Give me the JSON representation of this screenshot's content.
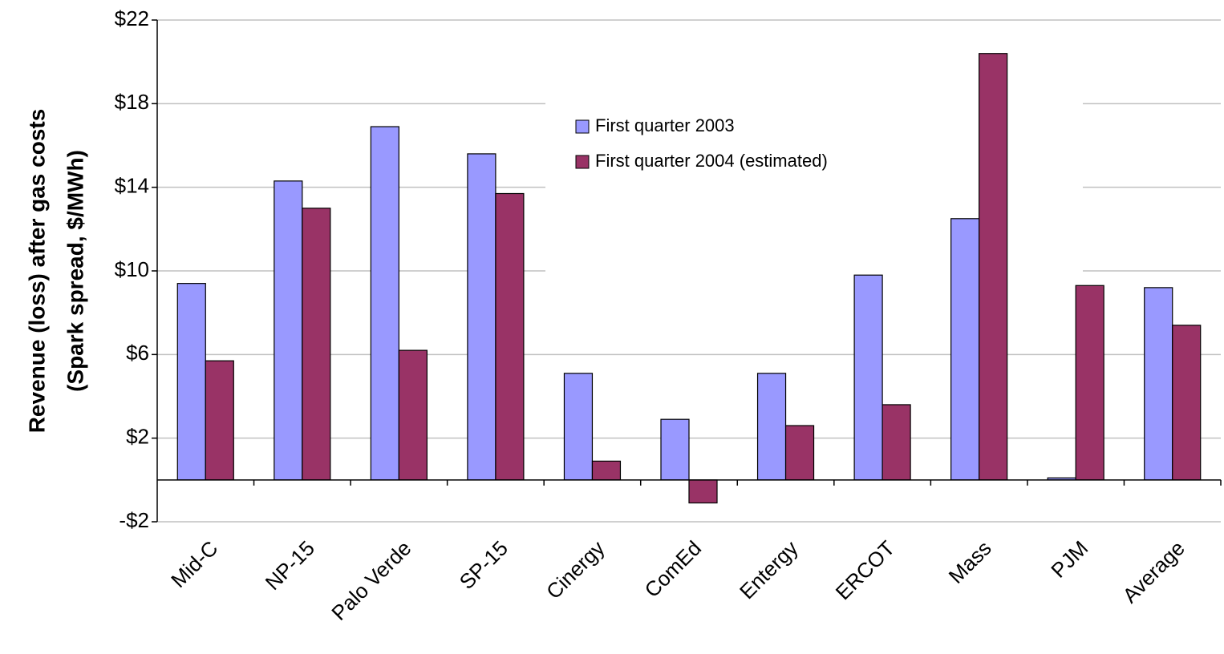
{
  "chart_data": {
    "type": "bar",
    "y_label": [
      "Revenue (loss) after gas costs",
      "(Spark spread, $/MWh)"
    ],
    "categories": [
      "Mid-C",
      "NP-15",
      "Palo Verde",
      "SP-15",
      "Cinergy",
      "ComEd",
      "Entergy",
      "ERCOT",
      "Mass",
      "PJM",
      "Average"
    ],
    "series": [
      {
        "name": "First quarter 2003",
        "color": "#9999ff",
        "values": [
          9.4,
          14.3,
          16.9,
          15.6,
          5.1,
          2.9,
          5.1,
          9.8,
          12.5,
          0.1,
          9.2
        ]
      },
      {
        "name": "First quarter 2004 (estimated)",
        "color": "#993366",
        "values": [
          5.7,
          13.0,
          6.2,
          13.7,
          0.9,
          -1.1,
          2.6,
          3.6,
          20.4,
          9.3,
          7.4
        ]
      }
    ],
    "ylim": [
      -2,
      22
    ],
    "yticks": [
      {
        "value": -2,
        "label": "-$2"
      },
      {
        "value": 2,
        "label": "$2"
      },
      {
        "value": 6,
        "label": "$6"
      },
      {
        "value": 10,
        "label": "$10"
      },
      {
        "value": 14,
        "label": "$14"
      },
      {
        "value": 18,
        "label": "$18"
      },
      {
        "value": 22,
        "label": "$22"
      }
    ],
    "grid": true,
    "legend": "upper-center"
  }
}
